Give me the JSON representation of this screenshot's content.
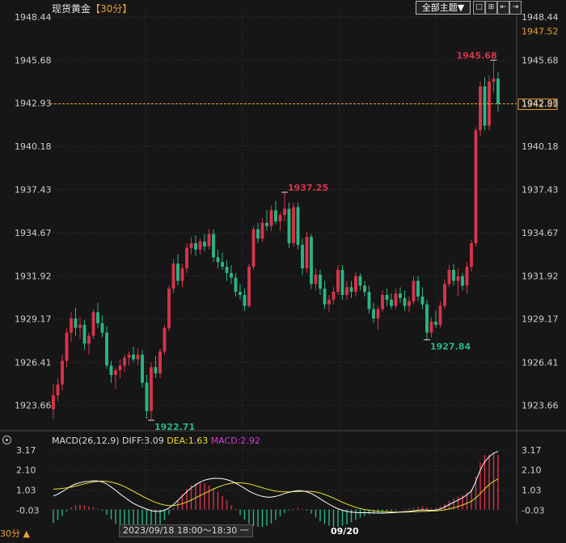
{
  "header": {
    "instrument": "现货黄金",
    "period": "【30分】",
    "theme_button": "全部主题▼"
  },
  "toolbar": [
    "□",
    "⊞",
    "⇤",
    "⇥"
  ],
  "current_price": "1942.89",
  "top_price": "1947.52",
  "chart_data": {
    "type": "candlestick",
    "y_ticks": [
      "1948.44",
      "1945.68",
      "1942.93",
      "1940.18",
      "1937.43",
      "1934.67",
      "1931.92",
      "1929.17",
      "1926.41",
      "1923.66"
    ],
    "ylim": [
      1922.2,
      1949.1
    ],
    "annotations": [
      {
        "label": "1945.68",
        "value": 1945.68,
        "type": "high"
      },
      {
        "label": "1937.25",
        "value": 1937.25,
        "type": "high"
      },
      {
        "label": "1922.71",
        "value": 1922.71,
        "type": "low"
      },
      {
        "label": "1927.84",
        "value": 1927.84,
        "type": "low"
      }
    ],
    "price_guide": 1942.89,
    "ohlc": [
      [
        1923.4,
        1925.0,
        1922.8,
        1924.3
      ],
      [
        1924.3,
        1925.4,
        1923.9,
        1925.0
      ],
      [
        1925.0,
        1926.9,
        1924.6,
        1926.5
      ],
      [
        1926.5,
        1928.6,
        1926.1,
        1928.3
      ],
      [
        1928.3,
        1929.6,
        1927.7,
        1929.2
      ],
      [
        1929.2,
        1929.9,
        1928.1,
        1928.6
      ],
      [
        1928.6,
        1929.3,
        1927.9,
        1928.8
      ],
      [
        1928.8,
        1929.1,
        1927.2,
        1927.6
      ],
      [
        1927.6,
        1928.3,
        1926.9,
        1928.1
      ],
      [
        1928.1,
        1929.8,
        1927.9,
        1929.6
      ],
      [
        1929.6,
        1930.2,
        1928.6,
        1928.9
      ],
      [
        1928.9,
        1929.4,
        1928.0,
        1928.3
      ],
      [
        1928.3,
        1928.7,
        1926.0,
        1926.2
      ],
      [
        1926.2,
        1926.5,
        1925.1,
        1925.6
      ],
      [
        1925.6,
        1926.1,
        1924.7,
        1925.9
      ],
      [
        1925.9,
        1926.6,
        1925.4,
        1926.2
      ],
      [
        1926.2,
        1926.9,
        1925.8,
        1926.7
      ],
      [
        1926.7,
        1927.1,
        1926.2,
        1926.9
      ],
      [
        1926.9,
        1927.4,
        1926.4,
        1926.6
      ],
      [
        1926.6,
        1927.3,
        1926.2,
        1926.9
      ],
      [
        1926.9,
        1927.2,
        1924.8,
        1925.1
      ],
      [
        1925.1,
        1925.6,
        1922.8,
        1923.3
      ],
      [
        1923.3,
        1926.4,
        1922.71,
        1926.1
      ],
      [
        1926.1,
        1926.8,
        1925.4,
        1925.7
      ],
      [
        1925.7,
        1927.3,
        1925.4,
        1927.1
      ],
      [
        1927.1,
        1928.8,
        1926.9,
        1928.6
      ],
      [
        1928.6,
        1931.3,
        1928.4,
        1931.1
      ],
      [
        1931.1,
        1933.0,
        1930.8,
        1932.7
      ],
      [
        1932.7,
        1933.3,
        1931.3,
        1931.6
      ],
      [
        1931.6,
        1932.7,
        1931.2,
        1932.4
      ],
      [
        1932.4,
        1934.0,
        1932.1,
        1933.7
      ],
      [
        1933.7,
        1934.4,
        1933.3,
        1934.0
      ],
      [
        1934.0,
        1934.5,
        1933.2,
        1933.6
      ],
      [
        1933.6,
        1934.3,
        1933.3,
        1934.1
      ],
      [
        1934.1,
        1934.6,
        1933.5,
        1933.8
      ],
      [
        1933.8,
        1934.9,
        1933.6,
        1934.6
      ],
      [
        1934.6,
        1934.9,
        1932.8,
        1933.1
      ],
      [
        1933.1,
        1933.6,
        1932.4,
        1932.8
      ],
      [
        1932.8,
        1933.4,
        1932.3,
        1932.5
      ],
      [
        1932.5,
        1932.9,
        1931.6,
        1932.1
      ],
      [
        1932.1,
        1932.6,
        1931.4,
        1931.8
      ],
      [
        1931.8,
        1932.1,
        1930.6,
        1930.9
      ],
      [
        1930.9,
        1931.4,
        1930.4,
        1930.7
      ],
      [
        1930.7,
        1931.1,
        1929.7,
        1930.0
      ],
      [
        1930.0,
        1932.7,
        1929.9,
        1932.5
      ],
      [
        1932.5,
        1935.1,
        1932.3,
        1934.9
      ],
      [
        1934.9,
        1935.3,
        1934.0,
        1934.3
      ],
      [
        1934.3,
        1935.6,
        1934.1,
        1935.3
      ],
      [
        1935.3,
        1936.1,
        1934.8,
        1935.1
      ],
      [
        1935.1,
        1936.4,
        1934.8,
        1936.1
      ],
      [
        1936.1,
        1936.7,
        1935.2,
        1935.4
      ],
      [
        1935.4,
        1936.0,
        1934.8,
        1935.8
      ],
      [
        1935.8,
        1937.25,
        1935.4,
        1936.2
      ],
      [
        1936.2,
        1936.6,
        1933.7,
        1934.0
      ],
      [
        1934.0,
        1936.6,
        1933.8,
        1936.3
      ],
      [
        1936.3,
        1936.6,
        1933.6,
        1933.9
      ],
      [
        1933.9,
        1934.3,
        1932.0,
        1932.4
      ],
      [
        1932.4,
        1934.7,
        1932.1,
        1934.4
      ],
      [
        1934.4,
        1934.6,
        1931.1,
        1931.4
      ],
      [
        1931.4,
        1932.4,
        1931.0,
        1932.0
      ],
      [
        1932.0,
        1932.3,
        1930.7,
        1931.1
      ],
      [
        1931.1,
        1931.6,
        1929.8,
        1930.1
      ],
      [
        1930.1,
        1930.7,
        1929.6,
        1930.4
      ],
      [
        1930.4,
        1931.2,
        1930.1,
        1930.9
      ],
      [
        1930.9,
        1932.6,
        1930.7,
        1932.3
      ],
      [
        1932.3,
        1932.6,
        1930.4,
        1930.7
      ],
      [
        1930.7,
        1931.6,
        1930.4,
        1931.2
      ],
      [
        1931.2,
        1931.6,
        1930.5,
        1930.9
      ],
      [
        1930.9,
        1932.2,
        1930.6,
        1931.9
      ],
      [
        1931.9,
        1932.1,
        1931.0,
        1931.3
      ],
      [
        1931.3,
        1931.6,
        1930.6,
        1930.9
      ],
      [
        1930.9,
        1931.3,
        1929.5,
        1929.8
      ],
      [
        1929.8,
        1930.2,
        1928.9,
        1929.2
      ],
      [
        1929.2,
        1930.0,
        1928.5,
        1929.8
      ],
      [
        1929.8,
        1931.0,
        1929.6,
        1930.7
      ],
      [
        1930.7,
        1931.1,
        1930.0,
        1930.4
      ],
      [
        1930.4,
        1930.8,
        1929.8,
        1930.0
      ],
      [
        1930.0,
        1931.1,
        1929.8,
        1930.8
      ],
      [
        1930.8,
        1931.2,
        1930.2,
        1930.5
      ],
      [
        1930.5,
        1931.0,
        1929.7,
        1930.0
      ],
      [
        1930.0,
        1930.6,
        1929.6,
        1930.3
      ],
      [
        1930.3,
        1931.9,
        1930.1,
        1931.6
      ],
      [
        1931.6,
        1931.9,
        1930.3,
        1930.6
      ],
      [
        1930.6,
        1931.2,
        1929.8,
        1930.1
      ],
      [
        1930.1,
        1930.4,
        1927.84,
        1928.3
      ],
      [
        1928.3,
        1929.3,
        1928.0,
        1929.0
      ],
      [
        1929.0,
        1929.7,
        1928.6,
        1928.8
      ],
      [
        1928.8,
        1930.3,
        1928.6,
        1930.0
      ],
      [
        1930.0,
        1931.7,
        1929.8,
        1931.4
      ],
      [
        1931.4,
        1932.6,
        1931.2,
        1932.3
      ],
      [
        1932.3,
        1932.7,
        1931.3,
        1931.6
      ],
      [
        1931.6,
        1932.4,
        1930.6,
        1931.9
      ],
      [
        1931.9,
        1932.1,
        1931.0,
        1931.3
      ],
      [
        1931.3,
        1932.8,
        1930.8,
        1932.5
      ],
      [
        1932.5,
        1934.2,
        1932.2,
        1934.0
      ],
      [
        1934.0,
        1941.4,
        1933.8,
        1941.2
      ],
      [
        1941.2,
        1944.3,
        1940.8,
        1944.0
      ],
      [
        1944.0,
        1944.6,
        1941.2,
        1941.5
      ],
      [
        1941.5,
        1944.7,
        1941.2,
        1944.3
      ],
      [
        1944.3,
        1945.68,
        1943.6,
        1944.5
      ],
      [
        1944.5,
        1944.9,
        1942.4,
        1942.89
      ]
    ],
    "x_label": "09/20"
  },
  "macd": {
    "legend_title": "MACD(26,12,9)",
    "diff_label": "DIFF:3.09",
    "dea_label": "DEA:1.63",
    "macd_label": "MACD:2.92",
    "y_ticks": [
      "3.17",
      "2.10",
      "1.03",
      "-0.03"
    ],
    "ylim": [
      -0.75,
      3.55
    ],
    "diff": [
      0.72,
      0.82,
      0.95,
      1.1,
      1.25,
      1.36,
      1.43,
      1.48,
      1.5,
      1.53,
      1.52,
      1.47,
      1.36,
      1.2,
      1.02,
      0.83,
      0.65,
      0.48,
      0.33,
      0.21,
      0.11,
      0.02,
      -0.06,
      -0.1,
      -0.1,
      -0.04,
      0.08,
      0.26,
      0.48,
      0.72,
      0.95,
      1.15,
      1.32,
      1.46,
      1.56,
      1.62,
      1.66,
      1.66,
      1.64,
      1.59,
      1.51,
      1.4,
      1.27,
      1.13,
      0.98,
      0.86,
      0.77,
      0.7,
      0.66,
      0.66,
      0.7,
      0.77,
      0.85,
      0.92,
      0.97,
      1.0,
      0.99,
      0.94,
      0.85,
      0.72,
      0.57,
      0.42,
      0.28,
      0.15,
      0.04,
      -0.04,
      -0.1,
      -0.14,
      -0.16,
      -0.17,
      -0.17,
      -0.17,
      -0.18,
      -0.19,
      -0.19,
      -0.18,
      -0.17,
      -0.16,
      -0.14,
      -0.12,
      -0.1,
      -0.07,
      -0.04,
      -0.02,
      -0.03,
      -0.05,
      -0.03,
      0.03,
      0.13,
      0.26,
      0.38,
      0.5,
      0.62,
      0.78,
      0.98,
      1.5,
      2.1,
      2.55,
      2.8,
      3.0,
      3.09
    ],
    "dea": [
      1.08,
      1.1,
      1.12,
      1.15,
      1.19,
      1.25,
      1.31,
      1.37,
      1.42,
      1.47,
      1.5,
      1.51,
      1.5,
      1.46,
      1.4,
      1.32,
      1.22,
      1.1,
      0.97,
      0.84,
      0.71,
      0.59,
      0.48,
      0.38,
      0.3,
      0.24,
      0.21,
      0.21,
      0.25,
      0.31,
      0.4,
      0.5,
      0.62,
      0.74,
      0.86,
      0.98,
      1.09,
      1.19,
      1.28,
      1.35,
      1.4,
      1.42,
      1.42,
      1.4,
      1.36,
      1.3,
      1.23,
      1.16,
      1.09,
      1.03,
      0.98,
      0.95,
      0.94,
      0.94,
      0.95,
      0.96,
      0.97,
      0.97,
      0.96,
      0.93,
      0.88,
      0.8,
      0.71,
      0.61,
      0.5,
      0.39,
      0.29,
      0.2,
      0.12,
      0.05,
      0.0,
      -0.04,
      -0.07,
      -0.09,
      -0.11,
      -0.12,
      -0.13,
      -0.14,
      -0.14,
      -0.14,
      -0.13,
      -0.12,
      -0.11,
      -0.1,
      -0.09,
      -0.08,
      -0.07,
      -0.05,
      -0.02,
      0.03,
      0.09,
      0.16,
      0.24,
      0.33,
      0.44,
      0.62,
      0.85,
      1.1,
      1.33,
      1.5,
      1.63
    ]
  },
  "footer": {
    "period": "30分 ▲",
    "date_range": "2023/09/18 18:00～18:30 一",
    "x_label": "09/20"
  },
  "colors": {
    "up": "#d8344a",
    "down": "#2bb583",
    "grid": "#3c3c3c",
    "guide": "#e8a13a",
    "diff_line": "#ffffff",
    "dea_line": "#e8e02a"
  }
}
